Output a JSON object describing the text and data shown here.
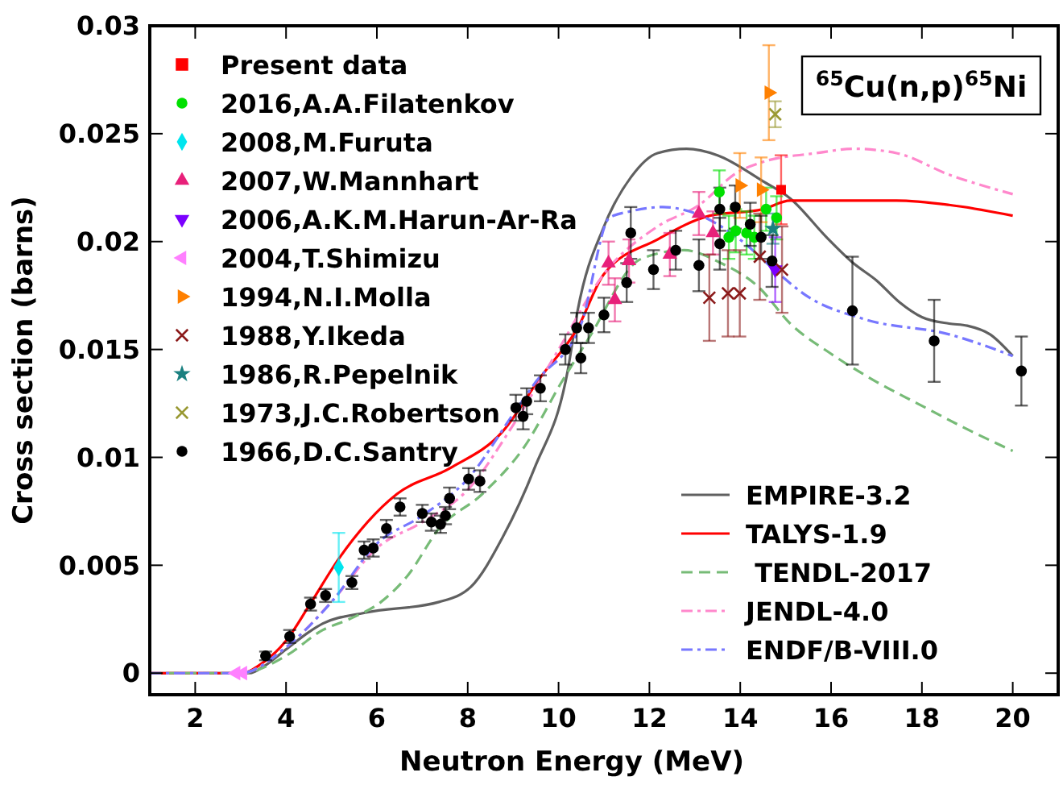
{
  "chart_data": {
    "type": "scatter",
    "xlabel": "Neutron Energy (MeV)",
    "ylabel": "Cross section (barns)",
    "xlim": [
      1,
      21
    ],
    "ylim": [
      -0.001,
      0.03
    ],
    "xticks": [
      2,
      4,
      6,
      8,
      10,
      12,
      14,
      16,
      18,
      20
    ],
    "yticks": [
      0,
      0.005,
      0.01,
      0.015,
      0.02,
      0.025,
      0.03
    ],
    "grid": false,
    "legend": "top left",
    "annotations": [
      "$^{65}$Cu(n,p)$^{65}$Ni"
    ],
    "series": [
      {
        "name": "EMPIRE-3.2",
        "type": "line",
        "line_style": "solid",
        "color": "#606060",
        "x": [
          1,
          3.2,
          3.5,
          4,
          4.5,
          4.81,
          5.74,
          7.37,
          8.07,
          8.77,
          9.47,
          10.2,
          10.42,
          11,
          11.6,
          12.18,
          12.82,
          13.5,
          14.5,
          15.1,
          15.9,
          16.49,
          17,
          17.5,
          18,
          18.6,
          19,
          19.5,
          20
        ],
        "values": [
          0,
          0,
          0.0003,
          0.0011,
          0.0019,
          0.0023,
          0.0028,
          0.0033,
          0.004,
          0.0063,
          0.0095,
          0.014,
          0.0168,
          0.0207,
          0.023,
          0.0241,
          0.0243,
          0.024,
          0.0228,
          0.022,
          0.0202,
          0.019,
          0.0182,
          0.0172,
          0.0165,
          0.0162,
          0.0161,
          0.0157,
          0.0147
        ]
      },
      {
        "name": "TALYS-1.9",
        "type": "line",
        "line_style": "solid",
        "color": "#ff0000",
        "x": [
          1,
          3,
          3.5,
          4,
          4.5,
          5.16,
          6.44,
          7.61,
          8.77,
          9.6,
          10.42,
          11,
          12.18,
          13.33,
          14.5,
          15.1,
          15.68,
          17.44,
          18.6,
          20
        ],
        "values": [
          0,
          0,
          0.0005,
          0.0015,
          0.0031,
          0.0053,
          0.0083,
          0.0095,
          0.0112,
          0.0137,
          0.016,
          0.0185,
          0.0201,
          0.0212,
          0.0215,
          0.0219,
          0.0219,
          0.0219,
          0.0217,
          0.0212
        ]
      },
      {
        "name": " TENDL-2017",
        "type": "line",
        "line_style": "dashed",
        "color": "#77bb77",
        "x": [
          1,
          3,
          4,
          4.81,
          5.39,
          6.09,
          6.67,
          7.37,
          8.32,
          9.25,
          10.07,
          10.66,
          11.82,
          12.76,
          13.58,
          14.4,
          15.1,
          16,
          17,
          17.9,
          19,
          20
        ],
        "values": [
          0,
          0,
          0.0008,
          0.002,
          0.0025,
          0.0033,
          0.0045,
          0.0067,
          0.0083,
          0.0105,
          0.0135,
          0.0155,
          0.0192,
          0.0196,
          0.019,
          0.0179,
          0.0162,
          0.0148,
          0.0135,
          0.0125,
          0.0113,
          0.0103
        ]
      },
      {
        "name": "JENDL-4.0",
        "type": "line",
        "line_style": "dashdot",
        "color": "#ff88cc",
        "x": [
          1,
          3,
          4,
          5,
          6,
          7,
          8,
          9,
          10,
          11,
          12.18,
          13.1,
          13.93,
          14.51,
          15.68,
          16.5,
          17.44,
          18.6,
          20
        ],
        "values": [
          0,
          0,
          0.0012,
          0.0033,
          0.0058,
          0.007,
          0.0085,
          0.0115,
          0.015,
          0.0185,
          0.0207,
          0.0217,
          0.0232,
          0.0237,
          0.0241,
          0.0243,
          0.0241,
          0.0231,
          0.0222
        ]
      },
      {
        "name": "ENDF/B-VIII.0",
        "type": "line",
        "line_style": "dashdot",
        "color": "#7777ff",
        "x": [
          1,
          3,
          4,
          5,
          6,
          7,
          8,
          9,
          9.5,
          10.5,
          11.12,
          11.58,
          12.29,
          12.88,
          13.93,
          14.75,
          15.45,
          16.74,
          18.6,
          20
        ],
        "values": [
          0,
          0,
          0.0012,
          0.0033,
          0.006,
          0.0073,
          0.009,
          0.012,
          0.0135,
          0.0162,
          0.0211,
          0.0214,
          0.0216,
          0.0214,
          0.0202,
          0.0187,
          0.0175,
          0.0164,
          0.0157,
          0.0147
        ]
      },
      {
        "name": "Present data",
        "marker": "square",
        "color": "#ff0000",
        "x": [
          14.9
        ],
        "values": [
          0.0224
        ],
        "errors": [
          0.0016
        ]
      },
      {
        "name": "2016,A.A.Filatenkov",
        "marker": "circle",
        "color": "#00e000",
        "x": [
          13.54,
          13.75,
          13.9,
          14.14,
          14.31,
          14.57,
          14.8
        ],
        "values": [
          0.0223,
          0.0202,
          0.0205,
          0.0204,
          0.0202,
          0.0215,
          0.0211
        ],
        "errors": [
          0.001,
          0.001,
          0.001,
          0.001,
          0.001,
          0.001,
          0.001
        ]
      },
      {
        "name": "2008,M.Furuta",
        "marker": "diamond",
        "color": "#00e5ee",
        "x": [
          5.16
        ],
        "values": [
          0.0049
        ],
        "errors": [
          0.0016
        ]
      },
      {
        "name": "2007,W.Mannhart",
        "marker": "triangle",
        "color": "#e8207a",
        "x": [
          11.1,
          11.24,
          11.55,
          12.45,
          13.09,
          13.4
        ],
        "values": [
          0.019,
          0.0173,
          0.0191,
          0.0194,
          0.0213,
          0.0204
        ],
        "errors": [
          0.001,
          0.001,
          0.001,
          0.001,
          0.001,
          0.001
        ]
      },
      {
        "name": "2006,A.K.M.Harun-Ar-Ra",
        "marker": "triangle-down",
        "color": "#7b00ff",
        "x": [
          14.77
        ],
        "values": [
          0.0187
        ],
        "errors": [
          0.0015
        ]
      },
      {
        "name": "2004,T.Shimizu",
        "marker": "triangle-left",
        "color": "#ff80ff",
        "x": [
          2.9,
          3.05
        ],
        "values": [
          0,
          0
        ],
        "errors": [
          null,
          null
        ]
      },
      {
        "name": "1994,N.I.Molla",
        "marker": "triangle-right",
        "color": "#ff8000",
        "x": [
          13.99,
          14.46,
          14.63
        ],
        "values": [
          0.0226,
          0.0224,
          0.0269
        ],
        "errors": [
          0.0015,
          0.0015,
          0.0022
        ]
      },
      {
        "name": "1988,Y.Ikeda",
        "marker": "cross",
        "color": "#8b1a1a",
        "x": [
          13.32,
          13.73,
          13.99,
          14.43,
          14.92
        ],
        "values": [
          0.0174,
          0.0176,
          0.0176,
          0.0193,
          0.0187
        ],
        "errors": [
          0.002,
          0.002,
          0.002,
          0.002,
          0.002
        ]
      },
      {
        "name": "1986,R.Pepelnik",
        "marker": "star",
        "color": "#1a8080",
        "x": [
          14.72
        ],
        "values": [
          0.0206
        ],
        "errors": [
          0.0007
        ]
      },
      {
        "name": "1973,J.C.Robertson",
        "marker": "cross",
        "color": "#999933",
        "x": [
          14.77
        ],
        "values": [
          0.0259
        ],
        "errors": [
          0.0006
        ]
      },
      {
        "name": "1966,D.C.Santry",
        "marker": "circle",
        "color": "#000000",
        "x": [
          3.55,
          4.08,
          4.54,
          4.87,
          5.45,
          5.72,
          5.92,
          6.21,
          6.51,
          7,
          7.2,
          7.4,
          7.51,
          7.6,
          8.02,
          8.27,
          9.06,
          9.22,
          9.3,
          9.6,
          10.15,
          10.4,
          10.49,
          10.66,
          11,
          11.5,
          11.59,
          12.09,
          12.58,
          13.09,
          13.55,
          13.55,
          13.89,
          14.22,
          14.46,
          14.7,
          16.47,
          18.27,
          20.19
        ],
        "values": [
          0.0008,
          0.0017,
          0.0032,
          0.0036,
          0.0042,
          0.0057,
          0.0058,
          0.0067,
          0.0077,
          0.0074,
          0.007,
          0.0069,
          0.0073,
          0.0081,
          0.009,
          0.0089,
          0.0123,
          0.0119,
          0.0126,
          0.0132,
          0.015,
          0.016,
          0.0146,
          0.016,
          0.0166,
          0.0181,
          0.0204,
          0.0187,
          0.0196,
          0.0189,
          0.0199,
          0.0215,
          0.0216,
          0.0208,
          0.0202,
          0.0191,
          0.0168,
          0.0154,
          0.014
        ],
        "errors": [
          0.0002,
          0.0003,
          0.0003,
          0.0003,
          0.0003,
          0.0004,
          0.0004,
          0.0004,
          0.0004,
          0.0004,
          0.0004,
          0.0004,
          0.0004,
          0.0005,
          0.0005,
          0.0005,
          0.0006,
          0.0006,
          0.0006,
          0.0006,
          0.0007,
          0.0007,
          0.0007,
          0.0007,
          0.0008,
          0.0009,
          0.0012,
          0.0009,
          0.0009,
          0.0012,
          0.0012,
          0.001,
          0.001,
          0.001,
          0.001,
          0.0012,
          0.0025,
          0.0019,
          0.0016
        ]
      }
    ]
  }
}
